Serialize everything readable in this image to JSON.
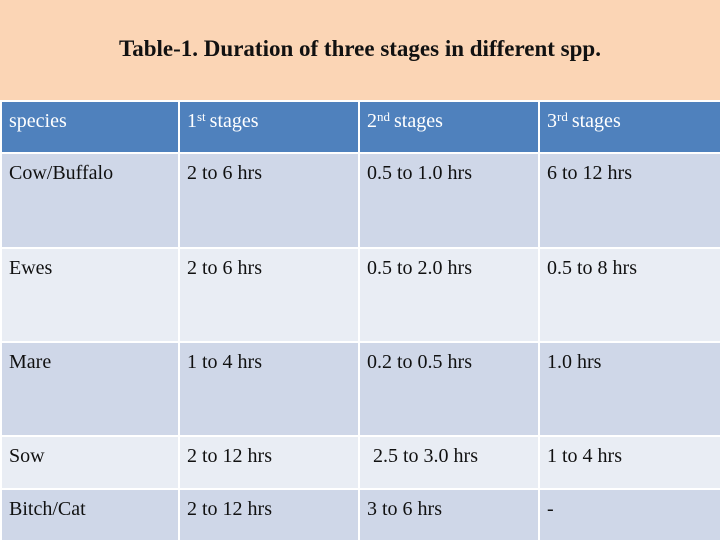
{
  "header": {
    "title": "Table-1. Duration of three stages in different spp."
  },
  "table": {
    "columns": [
      {
        "text": "species"
      },
      {
        "number": "1",
        "sup": "st",
        "text": "stages"
      },
      {
        "number": "2",
        "sup": "nd",
        "text": "stages"
      },
      {
        "number": "3",
        "sup": "rd",
        "text": "stages"
      }
    ],
    "rows": [
      [
        "Cow/Buffalo",
        "2 to 6 hrs",
        "0.5 to 1.0 hrs",
        "6 to 12 hrs"
      ],
      [
        "Ewes",
        "2 to 6 hrs",
        "0.5 to 2.0 hrs",
        "0.5 to 8 hrs"
      ],
      [
        "Mare",
        "1 to 4 hrs",
        "0.2 to 0.5 hrs",
        "1.0 hrs"
      ],
      [
        "Sow",
        "2 to 12 hrs",
        "2.5 to 3.0 hrs",
        "1 to 4 hrs"
      ],
      [
        "Bitch/Cat",
        "2 to 12 hrs",
        "3 to 6 hrs",
        "-"
      ]
    ]
  }
}
